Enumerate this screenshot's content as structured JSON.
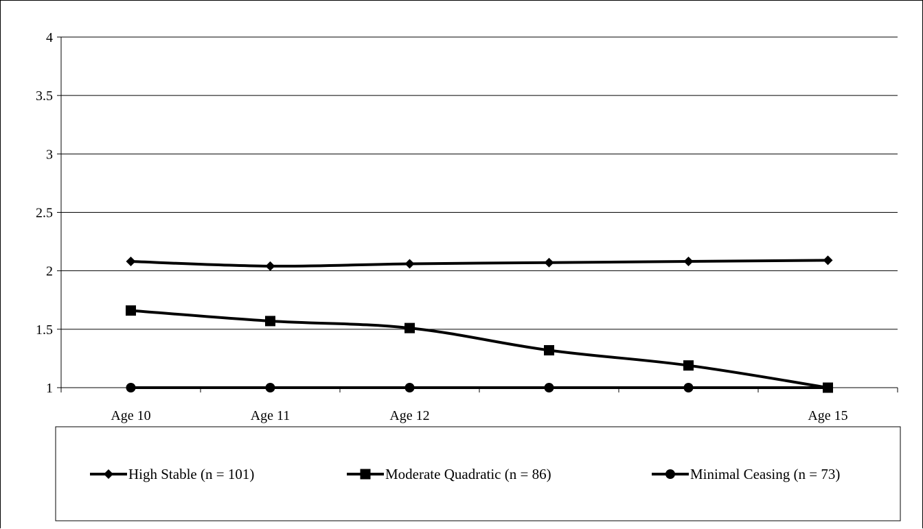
{
  "chart_data": {
    "type": "line",
    "categories": [
      "Age 10",
      "Age 11",
      "Age 12",
      "",
      "",
      "Age 15"
    ],
    "ylim": [
      1,
      4
    ],
    "yticks": [
      "1",
      "1.5",
      "2",
      "2.5",
      "3",
      "3.5",
      "4"
    ],
    "grid": true,
    "legend_position": "bottom",
    "series": [
      {
        "name": "High Stable (n = 101)",
        "marker": "diamond",
        "values": [
          2.08,
          2.04,
          2.06,
          2.07,
          2.08,
          2.09
        ]
      },
      {
        "name": "Moderate Quadratic (n = 86)",
        "marker": "square",
        "values": [
          1.66,
          1.57,
          1.51,
          1.32,
          1.19,
          1.0
        ]
      },
      {
        "name": "Minimal Ceasing (n = 73)",
        "marker": "circle",
        "values": [
          1.0,
          1.0,
          1.0,
          1.0,
          1.0,
          1.0
        ]
      }
    ],
    "line_color": "#000000"
  }
}
